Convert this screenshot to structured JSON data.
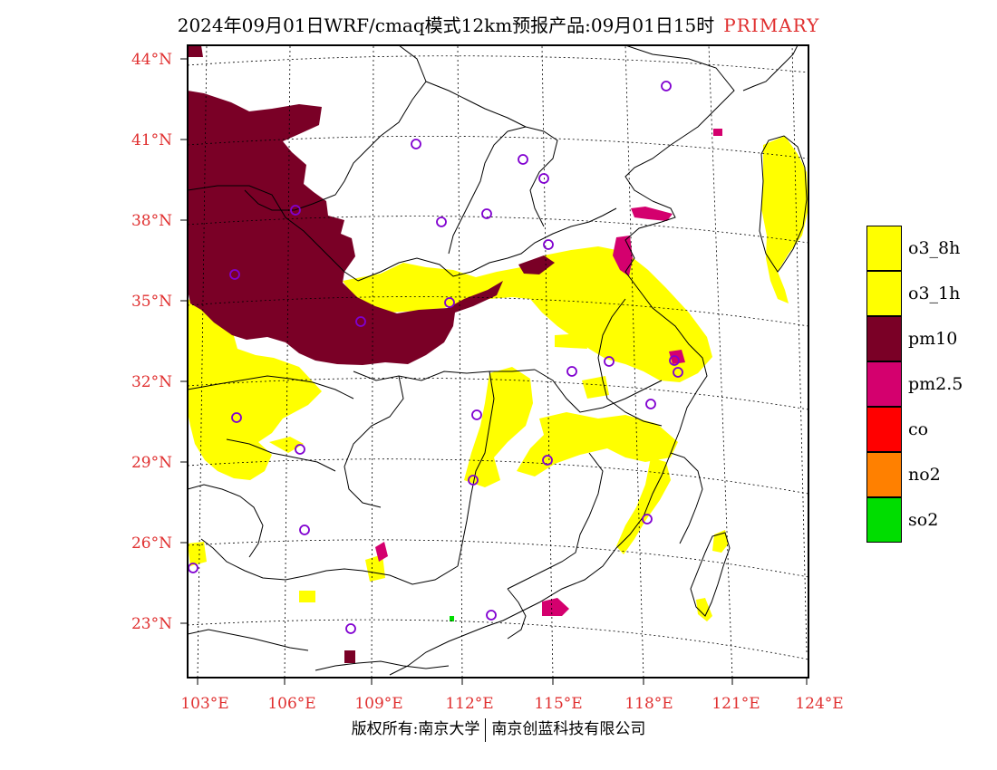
{
  "title": {
    "text": "2024年09月01日WRF/cmaq模式12km预报产品:09月01日15时",
    "tag": "PRIMARY"
  },
  "axes": {
    "lat_labels": [
      "44°N",
      "41°N",
      "38°N",
      "35°N",
      "32°N",
      "29°N",
      "26°N",
      "23°N"
    ],
    "lon_labels": [
      "103°E",
      "106°E",
      "109°E",
      "112°E",
      "115°E",
      "118°E",
      "121°E",
      "124°E"
    ],
    "label_color": "#e03030"
  },
  "legend": {
    "items": [
      {
        "label": "o3_8h",
        "color": "#ffff00"
      },
      {
        "label": "o3_1h",
        "color": "#ffff00"
      },
      {
        "label": "pm10",
        "color": "#7a0026"
      },
      {
        "label": "pm2.5",
        "color": "#d4006e"
      },
      {
        "label": "co",
        "color": "#ff0000"
      },
      {
        "label": "no2",
        "color": "#ff8000"
      },
      {
        "label": "so2",
        "color": "#00dd00"
      }
    ]
  },
  "copyright": {
    "left": "版权所有:南京大学",
    "right": "南京创蓝科技有限公司"
  },
  "colors": {
    "pm10": "#7a0026",
    "pm25": "#d4006e",
    "o3": "#ffff00",
    "station": "#8000d0",
    "so2": "#00dd00"
  }
}
